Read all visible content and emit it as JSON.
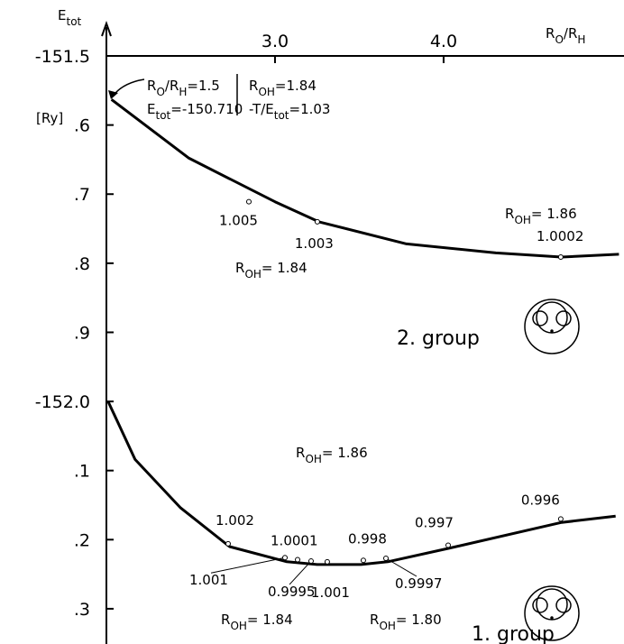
{
  "chart_data": {
    "type": "line",
    "xlabel": [
      {
        "t": "R"
      },
      {
        "s": "O"
      },
      {
        "t": "/R"
      },
      {
        "s": "H"
      }
    ],
    "ylabel": [
      {
        "t": "E"
      },
      {
        "s": "tot"
      }
    ],
    "yunit": "[Ry]",
    "xlim": [
      2.0,
      5.07
    ],
    "ylim": [
      -152.351,
      -151.5
    ],
    "xticks": [
      {
        "value": 3,
        "label": "3.0"
      },
      {
        "value": 4,
        "label": "4.0"
      }
    ],
    "yticks": [
      -151.5,
      {
        "value": -151.6,
        "label": ".6"
      },
      {
        "value": -151.7,
        "label": ".7"
      },
      {
        "value": -151.8,
        "label": ".8"
      },
      {
        "value": -151.9,
        "label": ".9"
      },
      {
        "value": -152.0,
        "label": "-152.0"
      },
      {
        "value": -152.1,
        "label": ".1"
      },
      {
        "value": -152.2,
        "label": ".2"
      },
      {
        "value": -152.3,
        "label": ".3"
      }
    ],
    "series": [
      {
        "name": "2. group",
        "color": "#000000",
        "x": [
          2.03,
          2.49,
          3.0,
          3.26,
          3.78,
          4.31,
          4.7,
          5.04
        ],
        "values": [
          -151.563,
          -151.648,
          -151.711,
          -151.74,
          -151.772,
          -151.785,
          -151.791,
          -151.787
        ],
        "points": {
          "x": [
            2.845,
            3.251,
            4.695
          ],
          "values": [
            -151.711,
            -151.74,
            -151.791
          ],
          "labels": [
            "1.005",
            "1.003",
            "1.0002"
          ]
        }
      },
      {
        "name": "1. group",
        "color": "#000000",
        "x": [
          2.01,
          2.17,
          2.44,
          2.73,
          3.07,
          3.25,
          3.51,
          3.67,
          4.04,
          4.7,
          5.02
        ],
        "values": [
          -152.0,
          -152.084,
          -152.154,
          -152.21,
          -152.232,
          -152.236,
          -152.236,
          -152.232,
          -152.212,
          -152.175,
          -152.166
        ],
        "points": {
          "x": [
            2.722,
            3.059,
            3.134,
            3.214,
            3.31,
            3.524,
            3.658,
            4.027,
            4.695
          ],
          "values": [
            -152.206,
            -152.226,
            -152.229,
            -152.231,
            -152.232,
            -152.23,
            -152.227,
            -152.208,
            -152.17
          ],
          "labels": [
            "1.002",
            "1.001",
            "1.0001",
            "0.9995",
            "1.001",
            "0.998",
            "0.9997",
            "0.997",
            "0.996"
          ]
        }
      }
    ],
    "annotations": [
      {
        "segments": [
          {
            "t": "R"
          },
          {
            "s": "O"
          },
          {
            "t": "/R"
          },
          {
            "s": "H"
          },
          {
            "t": "=1.5"
          }
        ]
      },
      {
        "segments": [
          {
            "t": "E"
          },
          {
            "s": "tot"
          },
          {
            "t": "=-150.710"
          }
        ]
      },
      {
        "segments": [
          {
            "t": "R"
          },
          {
            "s": "OH"
          },
          {
            "t": "=1.84"
          }
        ]
      },
      {
        "segments": [
          {
            "t": "-T/E"
          },
          {
            "s": "tot"
          },
          {
            "t": "=1.03"
          }
        ]
      },
      {
        "segments": [
          {
            "t": "R"
          },
          {
            "s": "OH"
          },
          {
            "t": "= 1.86"
          }
        ]
      },
      {
        "segments": [
          {
            "t": "R"
          },
          {
            "s": "OH"
          },
          {
            "t": "= 1.84"
          }
        ]
      },
      {
        "segments": [
          {
            "t": "R"
          },
          {
            "s": "OH"
          },
          {
            "t": "= 1.86"
          }
        ]
      },
      {
        "segments": [
          {
            "t": "R"
          },
          {
            "s": "OH"
          },
          {
            "t": "= 1.84"
          }
        ]
      },
      {
        "segments": [
          {
            "t": "R"
          },
          {
            "s": "OH"
          },
          {
            "t": "= 1.80"
          }
        ]
      }
    ]
  }
}
